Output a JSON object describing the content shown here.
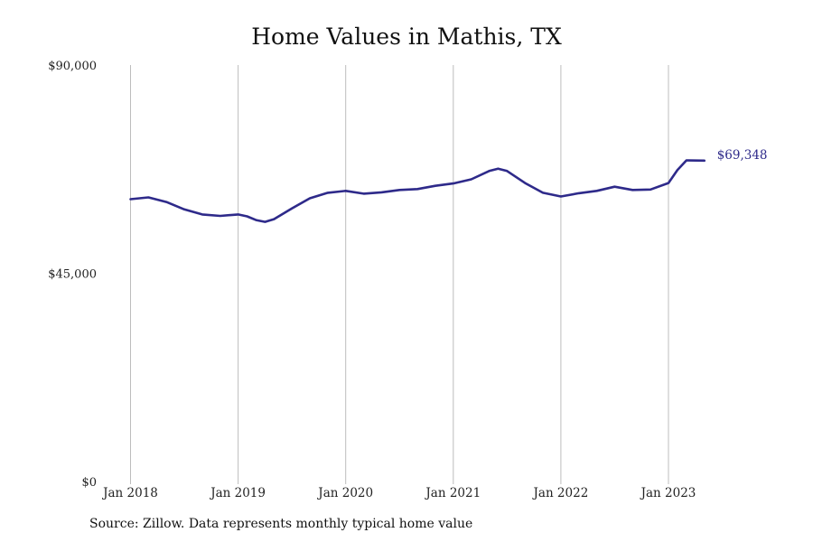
{
  "chart_data": {
    "type": "line",
    "title": "Home Values in Mathis, TX",
    "xlabel": "",
    "ylabel": "",
    "ylim": [
      0,
      90000
    ],
    "yticks": [
      {
        "value": 0,
        "label": "$0"
      },
      {
        "value": 45000,
        "label": "$45,000"
      },
      {
        "value": 90000,
        "label": "$90,000"
      }
    ],
    "xticks": [
      {
        "value": "2018-01",
        "label": "Jan 2018"
      },
      {
        "value": "2019-01",
        "label": "Jan 2019"
      },
      {
        "value": "2020-01",
        "label": "Jan 2020"
      },
      {
        "value": "2021-01",
        "label": "Jan 2021"
      },
      {
        "value": "2022-01",
        "label": "Jan 2022"
      },
      {
        "value": "2023-01",
        "label": "Jan 2023"
      }
    ],
    "grid": "vertical",
    "series": [
      {
        "color": "#2e2a8a",
        "end_label": "$69,348",
        "points": [
          {
            "x": "2018-01",
            "y": 61000
          },
          {
            "x": "2018-03",
            "y": 61400
          },
          {
            "x": "2018-05",
            "y": 60400
          },
          {
            "x": "2018-07",
            "y": 58800
          },
          {
            "x": "2018-09",
            "y": 57700
          },
          {
            "x": "2018-11",
            "y": 57400
          },
          {
            "x": "2019-01",
            "y": 57700
          },
          {
            "x": "2019-02",
            "y": 57300
          },
          {
            "x": "2019-03",
            "y": 56500
          },
          {
            "x": "2019-04",
            "y": 56100
          },
          {
            "x": "2019-05",
            "y": 56700
          },
          {
            "x": "2019-07",
            "y": 59000
          },
          {
            "x": "2019-09",
            "y": 61200
          },
          {
            "x": "2019-11",
            "y": 62400
          },
          {
            "x": "2020-01",
            "y": 62800
          },
          {
            "x": "2020-03",
            "y": 62200
          },
          {
            "x": "2020-05",
            "y": 62500
          },
          {
            "x": "2020-07",
            "y": 63000
          },
          {
            "x": "2020-09",
            "y": 63200
          },
          {
            "x": "2020-11",
            "y": 63900
          },
          {
            "x": "2021-01",
            "y": 64400
          },
          {
            "x": "2021-03",
            "y": 65300
          },
          {
            "x": "2021-05",
            "y": 67100
          },
          {
            "x": "2021-06",
            "y": 67600
          },
          {
            "x": "2021-07",
            "y": 67100
          },
          {
            "x": "2021-09",
            "y": 64500
          },
          {
            "x": "2021-11",
            "y": 62400
          },
          {
            "x": "2022-01",
            "y": 61600
          },
          {
            "x": "2022-03",
            "y": 62300
          },
          {
            "x": "2022-05",
            "y": 62800
          },
          {
            "x": "2022-07",
            "y": 63700
          },
          {
            "x": "2022-09",
            "y": 63000
          },
          {
            "x": "2022-11",
            "y": 63100
          },
          {
            "x": "2023-01",
            "y": 64500
          },
          {
            "x": "2023-02",
            "y": 67300
          },
          {
            "x": "2023-03",
            "y": 69400
          },
          {
            "x": "2023-05",
            "y": 69348
          }
        ]
      }
    ]
  },
  "source_text": "Source: Zillow. Data represents monthly typical home value"
}
